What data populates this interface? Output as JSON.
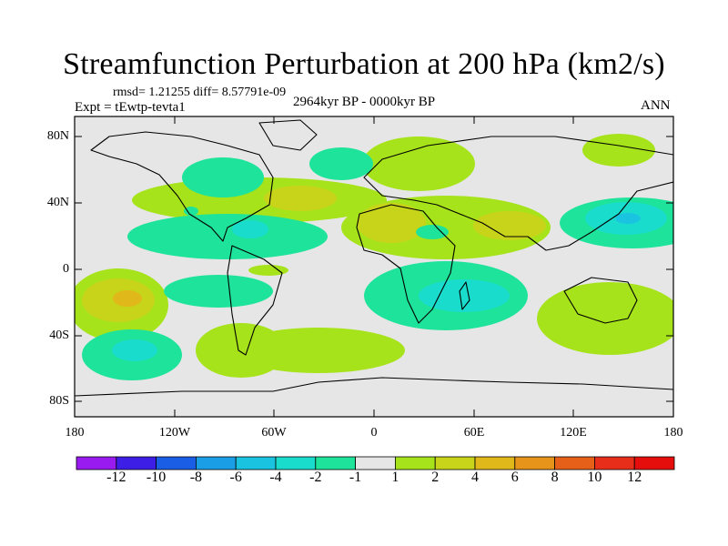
{
  "header": {
    "title": "Streamfunction Perturbation at 200 hPa (km2/s)",
    "rmsd_line": "rmsd= 1.21255 diff= 8.57791e-09",
    "experiment": "Expt = tEwtp-tevta1",
    "period": "2964kyr BP - 0000kyr BP",
    "season": "ANN"
  },
  "axes": {
    "lat_labels": [
      "80N",
      "40N",
      "0",
      "40S",
      "80S"
    ],
    "lon_labels": [
      "180",
      "120W",
      "60W",
      "0",
      "60E",
      "120E",
      "180"
    ]
  },
  "colorbar": {
    "labels": [
      "-12",
      "-10",
      "-8",
      "-6",
      "-4",
      "-2",
      "-1",
      "1",
      "2",
      "4",
      "6",
      "8",
      "10",
      "12"
    ],
    "colors": [
      "#9a1bf0",
      "#3d1ee6",
      "#1a5ee6",
      "#1a9ee6",
      "#1ac4e0",
      "#1adccc",
      "#1ee39a",
      "#e6e6e6",
      "#a6e31a",
      "#c8d41a",
      "#e0b81a",
      "#e6941a",
      "#e6601a",
      "#e62e1a",
      "#e60d0d"
    ]
  }
}
